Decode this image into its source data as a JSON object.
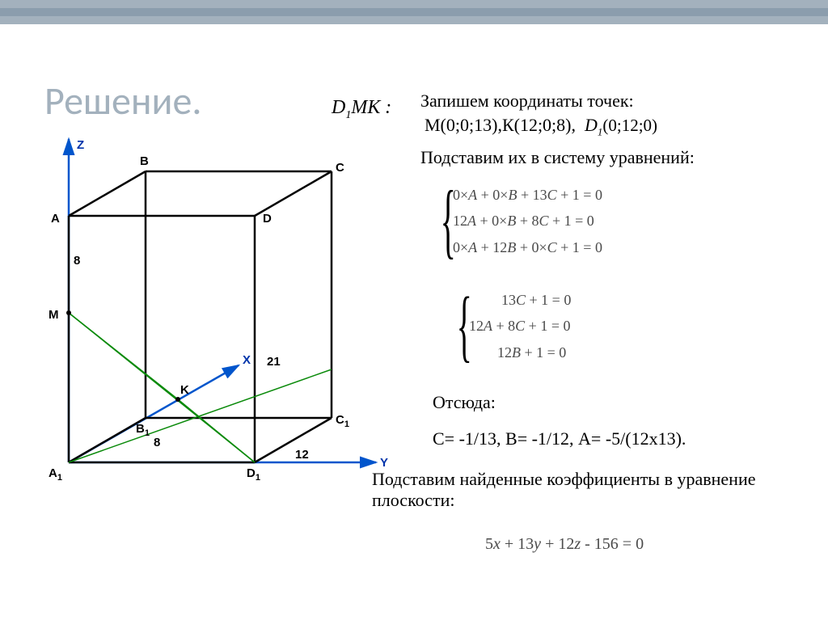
{
  "title": "Решение.",
  "plane_label": "D₁МК :",
  "coords_title": "Запишем координаты точек:",
  "coords_values": "М(0;0;13),К(12;0;8),  <span class='d1'>D<sub>1</sub></span> (0;12;0)",
  "substitute": "Подставим их в систему уравнений:",
  "system1": [
    "0×<i>A</i> + 0×<i>B</i> + 13<i>C</i> + 1 = 0",
    "12<i>A</i> + 0×<i>B</i> + 8<i>C</i> + 1 = 0",
    "0×<i>A</i> + 12<i>B</i> + 0×<i>C</i> + 1 = 0"
  ],
  "system2": [
    "13<i>C</i> + 1 = 0",
    "12<i>A</i> + 8<i>C</i> + 1 = 0",
    "12<i>B</i> + 1 = 0"
  ],
  "otsyuda": "Отсюда:",
  "coeffs": "С= -1/13, В= -1/12, А= -5/(12х13).",
  "substitute2": "Подставим найденные коэффициенты в уравнение плоскости:",
  "final_eq": "5<i>x</i> + 13<i>y</i> + 12<i>z</i> - 156 = 0",
  "diagram": {
    "axes": {
      "z": "Z",
      "x": "X",
      "y": "Y"
    },
    "vertices": {
      "A": "A",
      "B": "B",
      "C": "C",
      "D": "D",
      "A1": "A₁",
      "B1": "B₁",
      "C1": "C₁",
      "D1": "D₁"
    },
    "points": {
      "M": "M",
      "K": "K"
    },
    "labels": {
      "e8a": "8",
      "e8b": "8",
      "e21": "21",
      "e12": "12"
    },
    "colors": {
      "axis": "#0055cc",
      "cube": "#000000",
      "section": "#0a8a0a",
      "axis_label": "#0033aa"
    }
  }
}
